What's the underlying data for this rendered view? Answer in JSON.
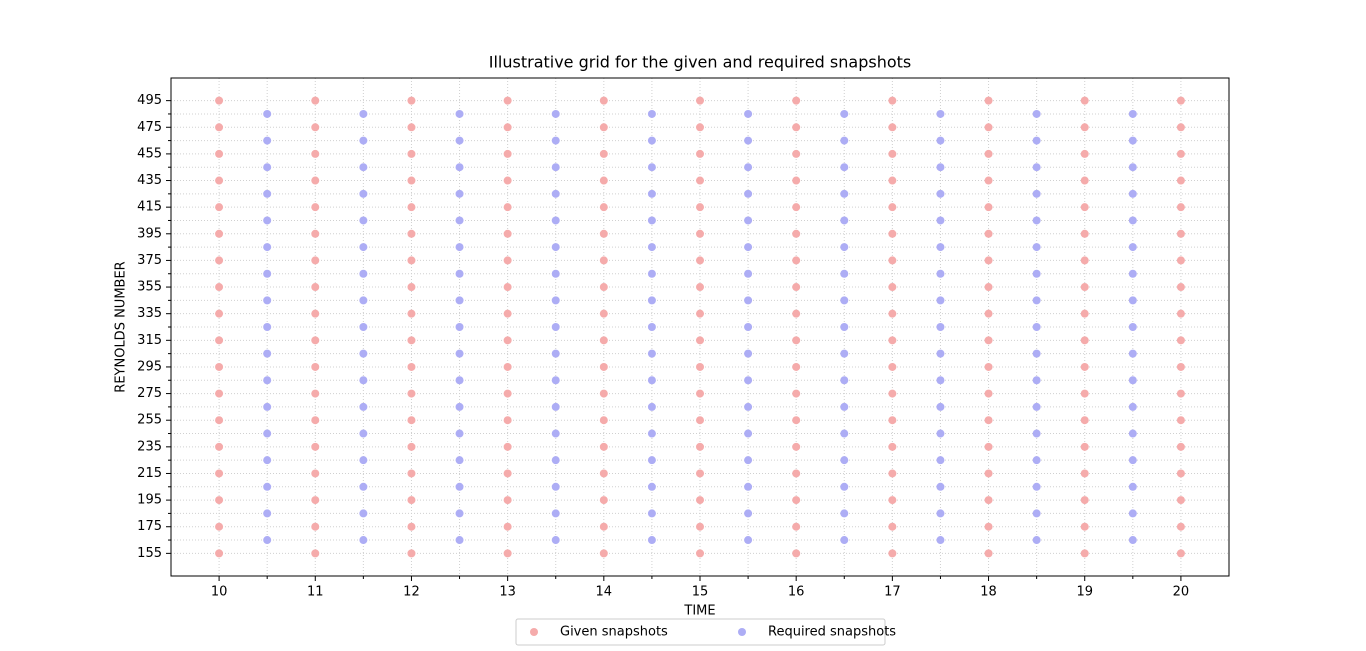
{
  "chart_data": {
    "type": "scatter",
    "title": "Illustrative grid for the given and required snapshots",
    "x_label": "TIME",
    "y_label": "REYNOLDS NUMBER",
    "xlim": [
      9.5,
      20.5
    ],
    "ylim": [
      138,
      512
    ],
    "xticks": [
      10,
      11,
      12,
      13,
      14,
      15,
      16,
      17,
      18,
      19,
      20
    ],
    "yticks": [
      155,
      175,
      195,
      215,
      235,
      255,
      275,
      295,
      315,
      335,
      355,
      375,
      395,
      415,
      435,
      455,
      475,
      495
    ],
    "xminorticks": [
      10.5,
      11.5,
      12.5,
      13.5,
      14.5,
      15.5,
      16.5,
      17.5,
      18.5,
      19.5
    ],
    "yminorticks": [
      165,
      185,
      205,
      225,
      245,
      265,
      285,
      305,
      325,
      345,
      365,
      385,
      405,
      425,
      445,
      465,
      485
    ],
    "grid": true,
    "legend": "lower center",
    "series": [
      {
        "name": "Given snapshots",
        "color": "#f5abab",
        "x": [
          10,
          10,
          10,
          10,
          10,
          10,
          10,
          10,
          10,
          10,
          10,
          10,
          10,
          10,
          10,
          10,
          10,
          10,
          11,
          11,
          11,
          11,
          11,
          11,
          11,
          11,
          11,
          11,
          11,
          11,
          11,
          11,
          11,
          11,
          11,
          11,
          12,
          12,
          12,
          12,
          12,
          12,
          12,
          12,
          12,
          12,
          12,
          12,
          12,
          12,
          12,
          12,
          12,
          12,
          13,
          13,
          13,
          13,
          13,
          13,
          13,
          13,
          13,
          13,
          13,
          13,
          13,
          13,
          13,
          13,
          13,
          13,
          14,
          14,
          14,
          14,
          14,
          14,
          14,
          14,
          14,
          14,
          14,
          14,
          14,
          14,
          14,
          14,
          14,
          14,
          15,
          15,
          15,
          15,
          15,
          15,
          15,
          15,
          15,
          15,
          15,
          15,
          15,
          15,
          15,
          15,
          15,
          15,
          16,
          16,
          16,
          16,
          16,
          16,
          16,
          16,
          16,
          16,
          16,
          16,
          16,
          16,
          16,
          16,
          16,
          16,
          17,
          17,
          17,
          17,
          17,
          17,
          17,
          17,
          17,
          17,
          17,
          17,
          17,
          17,
          17,
          17,
          17,
          17,
          18,
          18,
          18,
          18,
          18,
          18,
          18,
          18,
          18,
          18,
          18,
          18,
          18,
          18,
          18,
          18,
          18,
          18,
          19,
          19,
          19,
          19,
          19,
          19,
          19,
          19,
          19,
          19,
          19,
          19,
          19,
          19,
          19,
          19,
          19,
          19,
          20,
          20,
          20,
          20,
          20,
          20,
          20,
          20,
          20,
          20,
          20,
          20,
          20,
          20,
          20,
          20,
          20,
          20
        ],
        "values": [
          155,
          175,
          195,
          215,
          235,
          255,
          275,
          295,
          315,
          335,
          355,
          375,
          395,
          415,
          435,
          455,
          475,
          495,
          155,
          175,
          195,
          215,
          235,
          255,
          275,
          295,
          315,
          335,
          355,
          375,
          395,
          415,
          435,
          455,
          475,
          495,
          155,
          175,
          195,
          215,
          235,
          255,
          275,
          295,
          315,
          335,
          355,
          375,
          395,
          415,
          435,
          455,
          475,
          495,
          155,
          175,
          195,
          215,
          235,
          255,
          275,
          295,
          315,
          335,
          355,
          375,
          395,
          415,
          435,
          455,
          475,
          495,
          155,
          175,
          195,
          215,
          235,
          255,
          275,
          295,
          315,
          335,
          355,
          375,
          395,
          415,
          435,
          455,
          475,
          495,
          155,
          175,
          195,
          215,
          235,
          255,
          275,
          295,
          315,
          335,
          355,
          375,
          395,
          415,
          435,
          455,
          475,
          495,
          155,
          175,
          195,
          215,
          235,
          255,
          275,
          295,
          315,
          335,
          355,
          375,
          395,
          415,
          435,
          455,
          475,
          495,
          155,
          175,
          195,
          215,
          235,
          255,
          275,
          295,
          315,
          335,
          355,
          375,
          395,
          415,
          435,
          455,
          475,
          495,
          155,
          175,
          195,
          215,
          235,
          255,
          275,
          295,
          315,
          335,
          355,
          375,
          395,
          415,
          435,
          455,
          475,
          495,
          155,
          175,
          195,
          215,
          235,
          255,
          275,
          295,
          315,
          335,
          355,
          375,
          395,
          415,
          435,
          455,
          475,
          495,
          155,
          175,
          195,
          215,
          235,
          255,
          275,
          295,
          315,
          335,
          355,
          375,
          395,
          415,
          435,
          455,
          475,
          495
        ]
      },
      {
        "name": "Required snapshots",
        "color": "#adadf5",
        "x": [
          10.5,
          10.5,
          10.5,
          10.5,
          10.5,
          10.5,
          10.5,
          10.5,
          10.5,
          10.5,
          10.5,
          10.5,
          10.5,
          10.5,
          10.5,
          10.5,
          10.5,
          11.5,
          11.5,
          11.5,
          11.5,
          11.5,
          11.5,
          11.5,
          11.5,
          11.5,
          11.5,
          11.5,
          11.5,
          11.5,
          11.5,
          11.5,
          11.5,
          11.5,
          12.5,
          12.5,
          12.5,
          12.5,
          12.5,
          12.5,
          12.5,
          12.5,
          12.5,
          12.5,
          12.5,
          12.5,
          12.5,
          12.5,
          12.5,
          12.5,
          12.5,
          13.5,
          13.5,
          13.5,
          13.5,
          13.5,
          13.5,
          13.5,
          13.5,
          13.5,
          13.5,
          13.5,
          13.5,
          13.5,
          13.5,
          13.5,
          13.5,
          13.5,
          14.5,
          14.5,
          14.5,
          14.5,
          14.5,
          14.5,
          14.5,
          14.5,
          14.5,
          14.5,
          14.5,
          14.5,
          14.5,
          14.5,
          14.5,
          14.5,
          14.5,
          15.5,
          15.5,
          15.5,
          15.5,
          15.5,
          15.5,
          15.5,
          15.5,
          15.5,
          15.5,
          15.5,
          15.5,
          15.5,
          15.5,
          15.5,
          15.5,
          15.5,
          16.5,
          16.5,
          16.5,
          16.5,
          16.5,
          16.5,
          16.5,
          16.5,
          16.5,
          16.5,
          16.5,
          16.5,
          16.5,
          16.5,
          16.5,
          16.5,
          16.5,
          17.5,
          17.5,
          17.5,
          17.5,
          17.5,
          17.5,
          17.5,
          17.5,
          17.5,
          17.5,
          17.5,
          17.5,
          17.5,
          17.5,
          17.5,
          17.5,
          17.5,
          18.5,
          18.5,
          18.5,
          18.5,
          18.5,
          18.5,
          18.5,
          18.5,
          18.5,
          18.5,
          18.5,
          18.5,
          18.5,
          18.5,
          18.5,
          18.5,
          18.5,
          19.5,
          19.5,
          19.5,
          19.5,
          19.5,
          19.5,
          19.5,
          19.5,
          19.5,
          19.5,
          19.5,
          19.5,
          19.5,
          19.5,
          19.5,
          19.5,
          19.5
        ],
        "values": [
          165,
          185,
          205,
          225,
          245,
          265,
          285,
          305,
          325,
          345,
          365,
          385,
          405,
          425,
          445,
          465,
          485,
          165,
          185,
          205,
          225,
          245,
          265,
          285,
          305,
          325,
          345,
          365,
          385,
          405,
          425,
          445,
          465,
          485,
          165,
          185,
          205,
          225,
          245,
          265,
          285,
          305,
          325,
          345,
          365,
          385,
          405,
          425,
          445,
          465,
          485,
          165,
          185,
          205,
          225,
          245,
          265,
          285,
          305,
          325,
          345,
          365,
          385,
          405,
          425,
          445,
          465,
          485,
          165,
          185,
          205,
          225,
          245,
          265,
          285,
          305,
          325,
          345,
          365,
          385,
          405,
          425,
          445,
          465,
          485,
          165,
          185,
          205,
          225,
          245,
          265,
          285,
          305,
          325,
          345,
          365,
          385,
          405,
          425,
          445,
          465,
          485,
          165,
          185,
          205,
          225,
          245,
          265,
          285,
          305,
          325,
          345,
          365,
          385,
          405,
          425,
          445,
          465,
          485,
          165,
          185,
          205,
          225,
          245,
          265,
          285,
          305,
          325,
          345,
          365,
          385,
          405,
          425,
          445,
          465,
          485,
          165,
          185,
          205,
          225,
          245,
          265,
          285,
          305,
          325,
          345,
          365,
          385,
          405,
          425,
          445,
          465,
          485,
          165,
          185,
          205,
          225,
          245,
          265,
          285,
          305,
          325,
          345,
          365,
          385,
          405,
          425,
          445,
          465,
          485
        ]
      }
    ]
  }
}
